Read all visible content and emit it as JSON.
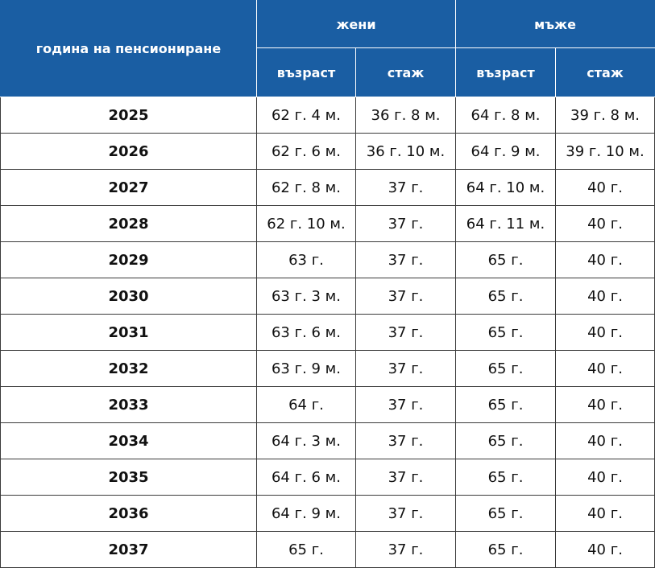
{
  "header": {
    "year_label": "година на пенсиониране",
    "women_label": "жени",
    "men_label": "мъже",
    "women_age_label": "възраст",
    "women_exp_label": "стаж",
    "men_age_label": "възраст",
    "men_exp_label": "стаж"
  },
  "rows": [
    {
      "year": "2025",
      "w_age": "62 г. 4 м.",
      "w_exp": "36 г. 8 м.",
      "m_age": "64 г. 8 м.",
      "m_exp": "39 г. 8 м."
    },
    {
      "year": "2026",
      "w_age": "62 г. 6 м.",
      "w_exp": "36 г. 10 м.",
      "m_age": "64 г. 9 м.",
      "m_exp": "39 г. 10 м."
    },
    {
      "year": "2027",
      "w_age": "62 г. 8 м.",
      "w_exp": "37 г.",
      "m_age": "64 г. 10 м.",
      "m_exp": "40 г."
    },
    {
      "year": "2028",
      "w_age": "62 г. 10 м.",
      "w_exp": "37 г.",
      "m_age": "64 г. 11 м.",
      "m_exp": "40 г."
    },
    {
      "year": "2029",
      "w_age": "63 г.",
      "w_exp": "37 г.",
      "m_age": "65 г.",
      "m_exp": "40 г."
    },
    {
      "year": "2030",
      "w_age": "63 г. 3 м.",
      "w_exp": "37 г.",
      "m_age": "65 г.",
      "m_exp": "40 г."
    },
    {
      "year": "2031",
      "w_age": "63 г. 6 м.",
      "w_exp": "37 г.",
      "m_age": "65 г.",
      "m_exp": "40 г."
    },
    {
      "year": "2032",
      "w_age": "63 г. 9 м.",
      "w_exp": "37 г.",
      "m_age": "65 г.",
      "m_exp": "40 г."
    },
    {
      "year": "2033",
      "w_age": "64 г.",
      "w_exp": "37 г.",
      "m_age": "65 г.",
      "m_exp": "40 г."
    },
    {
      "year": "2034",
      "w_age": "64 г. 3 м.",
      "w_exp": "37 г.",
      "m_age": "65 г.",
      "m_exp": "40 г."
    },
    {
      "year": "2035",
      "w_age": "64 г. 6 м.",
      "w_exp": "37 г.",
      "m_age": "65 г.",
      "m_exp": "40 г."
    },
    {
      "year": "2036",
      "w_age": "64 г. 9 м.",
      "w_exp": "37 г.",
      "m_age": "65 г.",
      "m_exp": "40 г."
    },
    {
      "year": "2037",
      "w_age": "65 г.",
      "w_exp": "37 г.",
      "m_age": "65 г.",
      "m_exp": "40 г."
    }
  ],
  "colors": {
    "header_bg": "#1a5ea3",
    "header_text": "#ffffff",
    "cell_border": "#3a3a3a"
  }
}
